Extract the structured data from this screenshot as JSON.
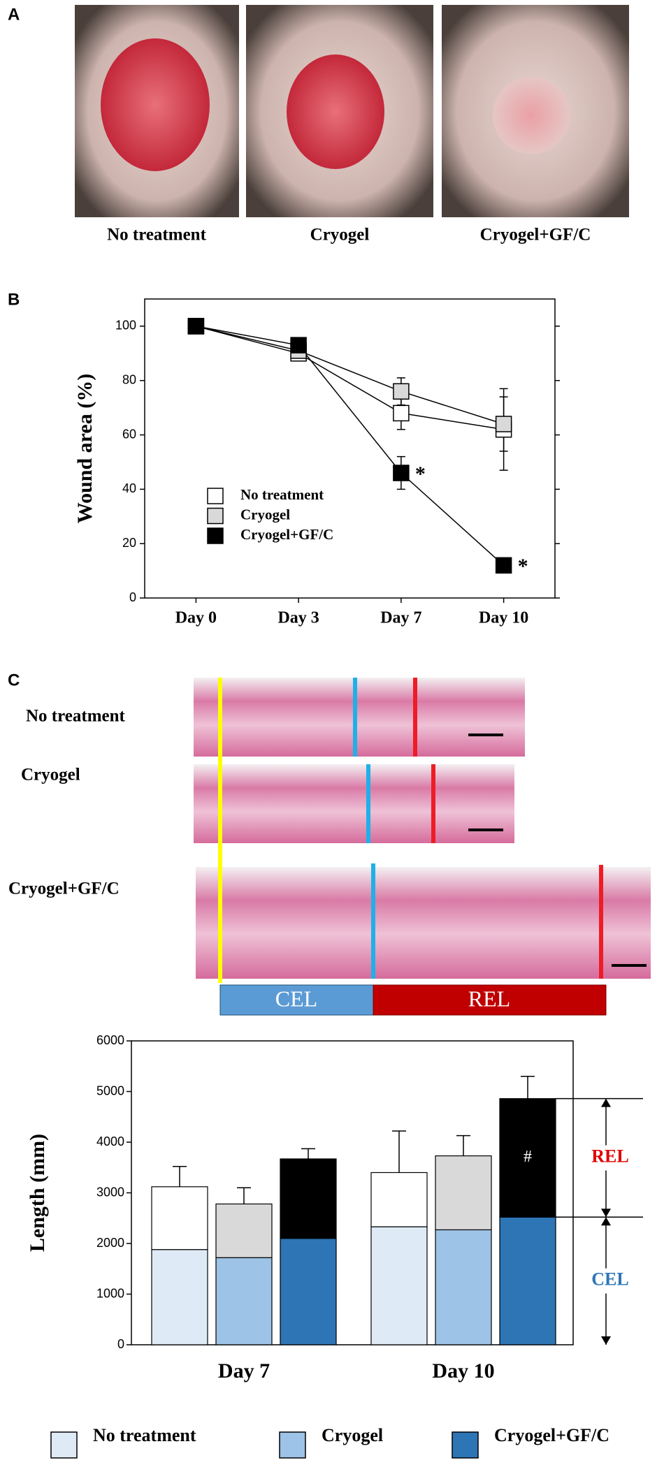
{
  "panel_labels": [
    "A",
    "B",
    "C"
  ],
  "photos": [
    "No treatment",
    "Cryogel",
    "Cryogel+GF/C"
  ],
  "histology": {
    "rows": [
      "No treatment",
      "Cryogel",
      "Cryogel+GF/C"
    ],
    "bar_labels": [
      "CEL",
      "REL"
    ]
  },
  "chart_data": [
    {
      "type": "line",
      "ylabel": "Wound area (%)",
      "categories": [
        "Day 0",
        "Day 3",
        "Day 7",
        "Day 10"
      ],
      "ylim": [
        0,
        110
      ],
      "yticks": [
        0,
        20,
        40,
        60,
        80,
        100
      ],
      "legend": "lower-left",
      "series": [
        {
          "name": "No treatment",
          "color": "#ffffff",
          "values": [
            100,
            90,
            68,
            62
          ],
          "errors": [
            0,
            2,
            6,
            15
          ]
        },
        {
          "name": "Cryogel",
          "color": "#d9d9d9",
          "values": [
            100,
            91,
            76,
            64
          ],
          "errors": [
            0,
            2,
            5,
            10
          ]
        },
        {
          "name": "Cryogel+GF/C",
          "color": "#000000",
          "values": [
            100,
            93,
            46,
            12
          ],
          "errors": [
            0,
            2,
            6,
            2
          ],
          "annotations": [
            null,
            null,
            "*",
            "*"
          ]
        }
      ]
    },
    {
      "type": "stacked_bar",
      "ylabel": "Length (mm)",
      "categories": [
        "Day 7",
        "Day 10"
      ],
      "ylim": [
        0,
        6000
      ],
      "yticks": [
        0,
        1000,
        2000,
        3000,
        4000,
        5000,
        6000
      ],
      "segment_labels": [
        "CEL",
        "REL"
      ],
      "segment_label_colors": [
        "#2e75b6",
        "#e00000"
      ],
      "series": [
        {
          "name": "No treatment",
          "color": "#deebf7",
          "top_color": "#ffffff",
          "values": [
            [
              1880,
              1240
            ],
            [
              2330,
              1070
            ]
          ],
          "errors": [
            400,
            820
          ]
        },
        {
          "name": "Cryogel",
          "color": "#9dc3e6",
          "top_color": "#d9d9d9",
          "values": [
            [
              1720,
              1060
            ],
            [
              2270,
              1460
            ]
          ],
          "errors": [
            320,
            400
          ]
        },
        {
          "name": "Cryogel+GF/C",
          "color": "#2e75b6",
          "top_color": "#000000",
          "values": [
            [
              2100,
              1570
            ],
            [
              2520,
              2340
            ]
          ],
          "errors": [
            200,
            440
          ],
          "annotations": [
            null,
            "#"
          ]
        }
      ]
    }
  ]
}
